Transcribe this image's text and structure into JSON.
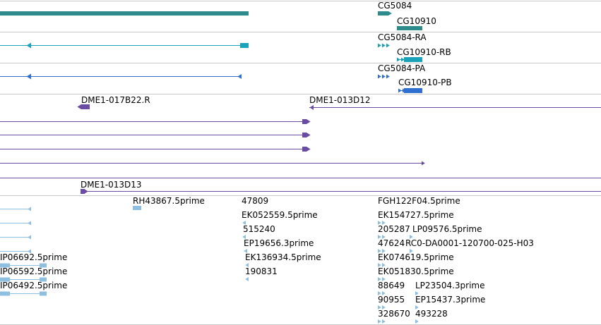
{
  "colors": {
    "gene": "#2e8b8b",
    "transcript_teal": "#1aa3b8",
    "transcript_blue": "#2f6fcf",
    "purple": "#6b4ca3",
    "est": "#8ebfe0",
    "divider": "#c8c8c8"
  },
  "tracks": {
    "gene": {
      "labels": [
        "CG5084",
        "CG10910"
      ]
    },
    "transcripts_r": {
      "labels": [
        "CG5084-RA",
        "CG10910-RB"
      ]
    },
    "transcripts_p": {
      "labels": [
        "CG5084-PA",
        "CG10910-PB"
      ]
    },
    "clones": {
      "labels": [
        "DME1-017B22.R",
        "DME1-013D12",
        "DME1-013D13"
      ]
    },
    "ests": {
      "labels": [
        "RH43867.5prime",
        "47809",
        "EK052559.5prime",
        "515240",
        "EP19656.3prime",
        "EK136934.5prime",
        "190831",
        "FGH122F04.5prime",
        "EK154727.5prime",
        "205287",
        "LP09576.5prime",
        "47624",
        "RC0-DA0001-120700-025-H03",
        "EK074619.5prime",
        "EK051830.5prime",
        "88649",
        "LP23504.3prime",
        "90955",
        "EP15437.3prime",
        "328670",
        "493228",
        "IP06692.5prime",
        "IP06592.5prime",
        "IP06492.5prime"
      ]
    }
  }
}
